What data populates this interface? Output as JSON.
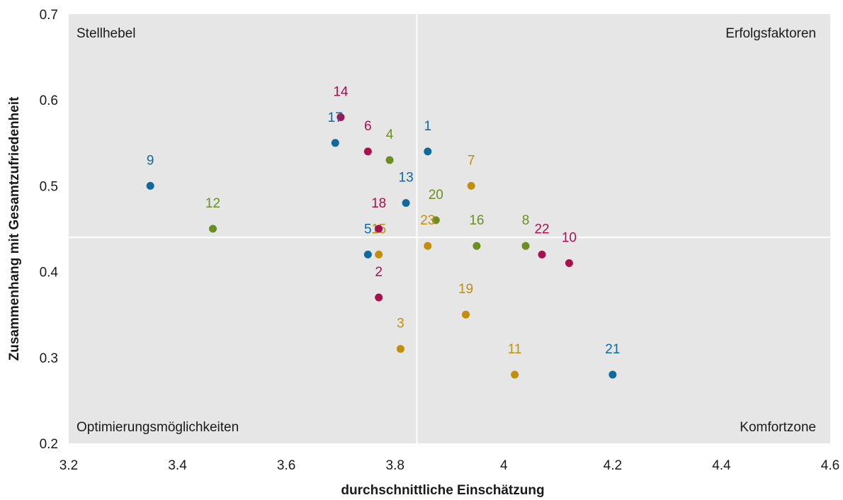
{
  "chart_data": {
    "type": "scatter",
    "xlabel": "durchschnittliche Einschätzung",
    "ylabel": "Zusammenhang mit Gesamtzufriedenheit",
    "xlim": [
      3.2,
      4.6
    ],
    "ylim": [
      0.2,
      0.7
    ],
    "x_ticks": [
      "3.2",
      "3.4",
      "3.6",
      "3.8",
      "4",
      "4.2",
      "4.4",
      "4.6"
    ],
    "y_ticks": [
      "0.2",
      "0.3",
      "0.4",
      "0.5",
      "0.6",
      "0.7"
    ],
    "quadrant_lines": {
      "x": 3.84,
      "y": 0.44
    },
    "quadrants": {
      "top_left": "Stellhebel",
      "top_right": "Erfolgsfaktoren",
      "bottom_left": "Optimierungsmöglichkeiten",
      "bottom_right": "Komfortzone"
    },
    "grid": false,
    "colors": {
      "blue": "#0e6a9c",
      "red": "#a8104f",
      "green": "#6b8e23",
      "gold": "#c18f0b",
      "plot_bg": "#e6e6e6"
    },
    "points": [
      {
        "label": "1",
        "x": 3.86,
        "y": 0.54,
        "color": "blue"
      },
      {
        "label": "2",
        "x": 3.77,
        "y": 0.37,
        "color": "red"
      },
      {
        "label": "3",
        "x": 3.81,
        "y": 0.31,
        "color": "gold"
      },
      {
        "label": "4",
        "x": 3.79,
        "y": 0.53,
        "color": "green"
      },
      {
        "label": "5",
        "x": 3.75,
        "y": 0.42,
        "color": "blue"
      },
      {
        "label": "6",
        "x": 3.75,
        "y": 0.54,
        "color": "red"
      },
      {
        "label": "7",
        "x": 3.94,
        "y": 0.5,
        "color": "gold"
      },
      {
        "label": "8",
        "x": 4.04,
        "y": 0.43,
        "color": "green"
      },
      {
        "label": "9",
        "x": 3.35,
        "y": 0.5,
        "color": "blue"
      },
      {
        "label": "10",
        "x": 4.12,
        "y": 0.41,
        "color": "red"
      },
      {
        "label": "11",
        "x": 4.02,
        "y": 0.28,
        "color": "gold"
      },
      {
        "label": "12",
        "x": 3.465,
        "y": 0.45,
        "color": "green"
      },
      {
        "label": "13",
        "x": 3.82,
        "y": 0.48,
        "color": "blue"
      },
      {
        "label": "14",
        "x": 3.7,
        "y": 0.58,
        "color": "red"
      },
      {
        "label": "15",
        "x": 3.77,
        "y": 0.42,
        "color": "gold"
      },
      {
        "label": "16",
        "x": 3.95,
        "y": 0.43,
        "color": "green"
      },
      {
        "label": "17",
        "x": 3.69,
        "y": 0.55,
        "color": "blue"
      },
      {
        "label": "18",
        "x": 3.77,
        "y": 0.45,
        "color": "red"
      },
      {
        "label": "19",
        "x": 3.93,
        "y": 0.35,
        "color": "gold"
      },
      {
        "label": "20",
        "x": 3.875,
        "y": 0.46,
        "color": "green"
      },
      {
        "label": "21",
        "x": 4.2,
        "y": 0.28,
        "color": "blue"
      },
      {
        "label": "22",
        "x": 4.07,
        "y": 0.42,
        "color": "red"
      },
      {
        "label": "23",
        "x": 3.86,
        "y": 0.43,
        "color": "gold"
      }
    ]
  }
}
